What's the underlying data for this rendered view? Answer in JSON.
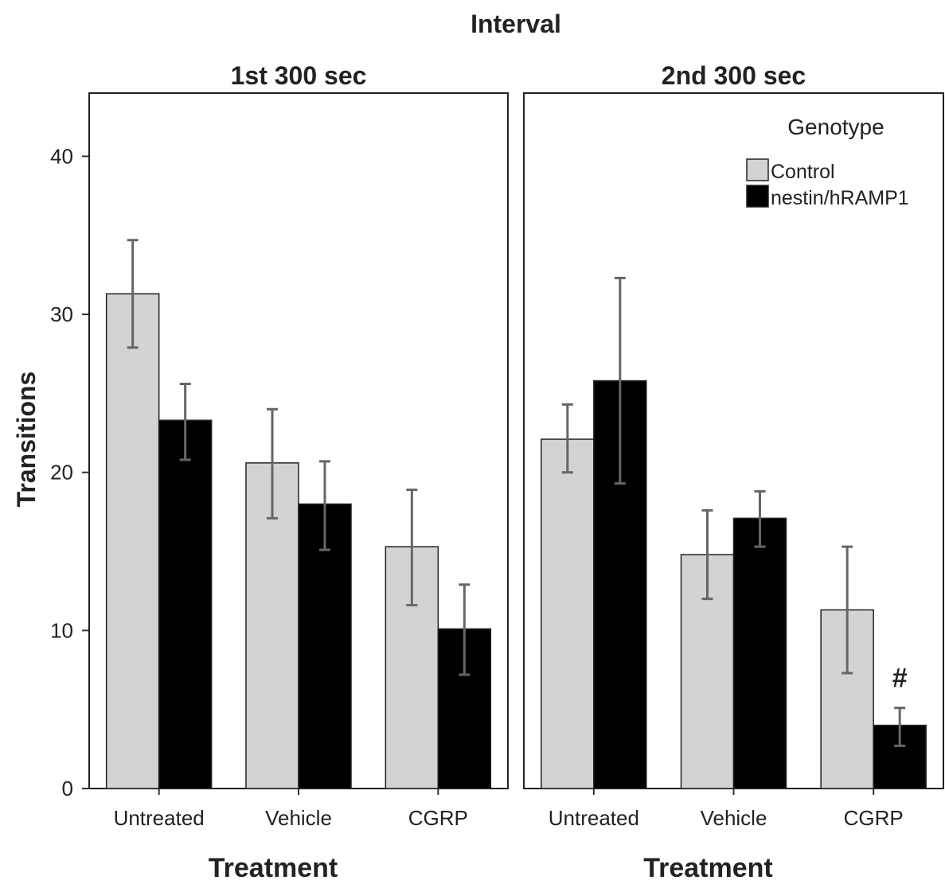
{
  "chart_data": {
    "type": "bar",
    "title": "Interval",
    "ylabel": "Transitions",
    "ylim": [
      0,
      44
    ],
    "yticks": [
      0,
      10,
      20,
      30,
      40
    ],
    "grid": false,
    "legend": {
      "title": "Genotype",
      "placement": "top-right",
      "entries": [
        "Control",
        "nestin/hRAMP1"
      ]
    },
    "colors": {
      "Control": "#d3d3d3",
      "nestin/hRAMP1": "#000000",
      "error_bar": "#666666"
    },
    "panels": [
      {
        "title": "1st 300 sec",
        "xlabel": "Treatment",
        "categories": [
          "Untreated",
          "Vehicle",
          "CGRP"
        ],
        "series": [
          {
            "name": "Control",
            "values": [
              31.3,
              20.6,
              15.3
            ],
            "err_low": [
              27.9,
              17.1,
              11.6
            ],
            "err_high": [
              34.7,
              24.0,
              18.9
            ]
          },
          {
            "name": "nestin/hRAMP1",
            "values": [
              23.3,
              18.0,
              10.1
            ],
            "err_low": [
              20.8,
              15.1,
              7.2
            ],
            "err_high": [
              25.6,
              20.7,
              12.9
            ]
          }
        ],
        "annotations": []
      },
      {
        "title": "2nd 300 sec",
        "xlabel": "Treatment",
        "categories": [
          "Untreated",
          "Vehicle",
          "CGRP"
        ],
        "series": [
          {
            "name": "Control",
            "values": [
              22.1,
              14.8,
              11.3
            ],
            "err_low": [
              20.0,
              12.0,
              7.3
            ],
            "err_high": [
              24.3,
              17.6,
              15.3
            ]
          },
          {
            "name": "nestin/hRAMP1",
            "values": [
              25.8,
              17.1,
              4.0
            ],
            "err_low": [
              19.3,
              15.3,
              2.7
            ],
            "err_high": [
              32.3,
              18.8,
              5.1
            ]
          }
        ],
        "annotations": [
          {
            "text": "#",
            "category": "CGRP",
            "series": "nestin/hRAMP1"
          }
        ]
      }
    ]
  }
}
